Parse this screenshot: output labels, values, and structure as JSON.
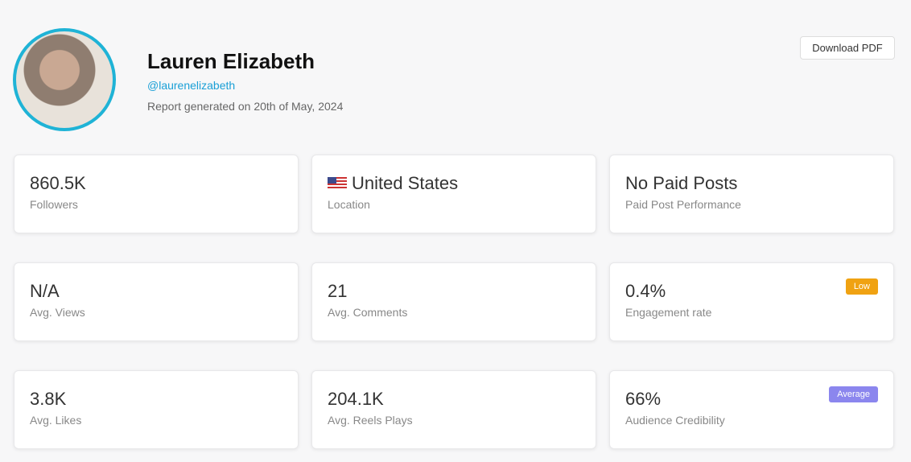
{
  "profile": {
    "name": "Lauren Elizabeth",
    "handle": "@laurenelizabeth",
    "report_date": "Report generated on 20th of May, 2024",
    "download": "Download PDF"
  },
  "cards": [
    {
      "value": "860.5K",
      "label": "Followers"
    },
    {
      "value": "United States",
      "label": "Location"
    },
    {
      "value": "No Paid Posts",
      "label": "Paid Post Performance"
    },
    {
      "value": "N/A",
      "label": "Avg. Views"
    },
    {
      "value": "21",
      "label": "Avg. Comments"
    },
    {
      "value": "0.4%",
      "label": "Engagement rate",
      "badge": "Low"
    },
    {
      "value": "3.8K",
      "label": "Avg. Likes"
    },
    {
      "value": "204.1K",
      "label": "Avg. Reels Plays"
    },
    {
      "value": "66%",
      "label": "Audience Credibility",
      "badge": "Average"
    }
  ]
}
